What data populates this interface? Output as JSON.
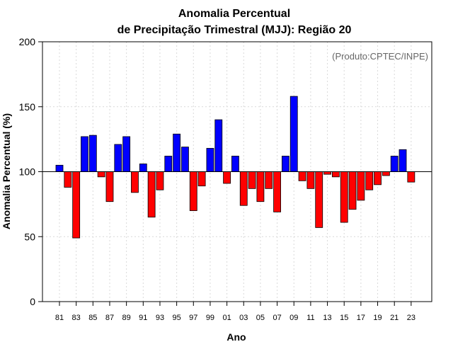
{
  "chart_data": {
    "type": "bar",
    "title": "Anomalia Percentual",
    "subtitle": "de Precipitação Trimestral (MJJ): Região 20",
    "xlabel": "Ano",
    "ylabel": "Anomalia Percentual (%)",
    "annotation": "(Produto:CPTEC/INPE)",
    "ylim": [
      0,
      200
    ],
    "yticks": [
      0,
      50,
      100,
      150,
      200
    ],
    "baseline": 100,
    "grid": true,
    "categories": [
      "1981",
      "1982",
      "1983",
      "1984",
      "1985",
      "1986",
      "1987",
      "1988",
      "1989",
      "1990",
      "1991",
      "1992",
      "1993",
      "1994",
      "1995",
      "1996",
      "1997",
      "1998",
      "1999",
      "2000",
      "2001",
      "2002",
      "2003",
      "2004",
      "2005",
      "2006",
      "2007",
      "2008",
      "2009",
      "2010",
      "2011",
      "2012",
      "2013",
      "2014",
      "2015",
      "2016",
      "2017",
      "2018",
      "2019",
      "2020",
      "2021",
      "2022",
      "2023"
    ],
    "xtick_labels": [
      "81",
      "83",
      "85",
      "87",
      "89",
      "91",
      "93",
      "95",
      "97",
      "99",
      "01",
      "03",
      "05",
      "07",
      "09",
      "11",
      "13",
      "15",
      "17",
      "19",
      "21",
      "23"
    ],
    "values": [
      105,
      88,
      49,
      127,
      128,
      96,
      77,
      121,
      127,
      84,
      106,
      65,
      86,
      112,
      129,
      119,
      70,
      89,
      118,
      140,
      91,
      112,
      74,
      87,
      77,
      87,
      69,
      112,
      158,
      93,
      87,
      57,
      98,
      96,
      61,
      71,
      78,
      86,
      90,
      97,
      112,
      117,
      92
    ],
    "colors": {
      "above": "#0000ff",
      "below": "#ff0000",
      "axis": "#000000",
      "grid": "#d9d9d9"
    }
  }
}
